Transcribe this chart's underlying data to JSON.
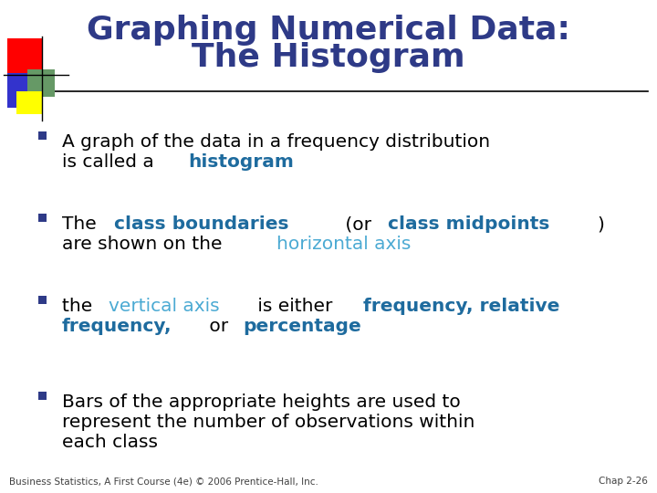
{
  "title_line1": "Graphing Numerical Data:",
  "title_line2": "The Histogram",
  "title_color": "#2E3A87",
  "background_color": "#FFFFFF",
  "footer_left": "Business Statistics, A First Course (4e) © 2006 Prentice-Hall, Inc.",
  "footer_right": "Chap 2-26",
  "footer_color": "#404040",
  "bullet_color": "#2E3A87",
  "separator_line_color": "#000000",
  "bullets": [
    {
      "parts": [
        {
          "text": "A graph of the data in a frequency distribution\nis called a ",
          "style": "normal",
          "color": "#000000"
        },
        {
          "text": "histogram",
          "style": "bold",
          "color": "#1E6B9E"
        }
      ]
    },
    {
      "parts": [
        {
          "text": "The ",
          "style": "normal",
          "color": "#000000"
        },
        {
          "text": "class boundaries",
          "style": "bold",
          "color": "#1E6B9E"
        },
        {
          "text": " (or ",
          "style": "normal",
          "color": "#000000"
        },
        {
          "text": "class midpoints",
          "style": "bold",
          "color": "#1E6B9E"
        },
        {
          "text": ")\nare shown on the ",
          "style": "normal",
          "color": "#000000"
        },
        {
          "text": "horizontal axis",
          "style": "normal",
          "color": "#4BAAD3"
        }
      ]
    },
    {
      "parts": [
        {
          "text": "the ",
          "style": "normal",
          "color": "#000000"
        },
        {
          "text": "vertical axis",
          "style": "normal",
          "color": "#4BAAD3"
        },
        {
          "text": " is either ",
          "style": "normal",
          "color": "#000000"
        },
        {
          "text": "frequency, relative\nfrequency,",
          "style": "bold",
          "color": "#1E6B9E"
        },
        {
          "text": " or ",
          "style": "normal",
          "color": "#000000"
        },
        {
          "text": "percentage",
          "style": "bold",
          "color": "#1E6B9E"
        }
      ]
    },
    {
      "parts": [
        {
          "text": "Bars of the appropriate heights are used to\nrepresent the number of observations within\neach class",
          "style": "normal",
          "color": "#000000"
        }
      ]
    }
  ],
  "logo_colors": {
    "red": "#FF0000",
    "blue": "#3333CC",
    "green": "#669966",
    "yellow": "#FFFF00"
  }
}
